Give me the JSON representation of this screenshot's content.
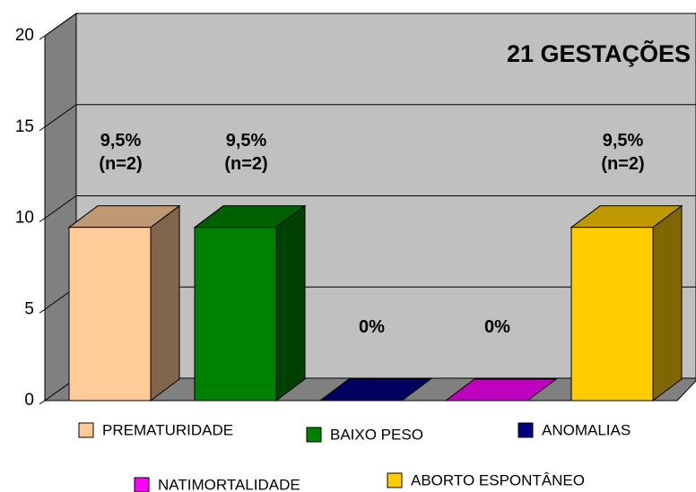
{
  "chart_data": {
    "type": "bar3d",
    "title": "21 GESTAÇÕES",
    "ylim": [
      0,
      20
    ],
    "yticks": [
      0,
      5,
      10,
      15,
      20
    ],
    "grid": true,
    "series": [
      {
        "name": "PREMATURIDADE",
        "color": "#FFCC99",
        "values": [
          9.5
        ],
        "value_labels": [
          "9,5% (n=2)"
        ]
      },
      {
        "name": "BAIXO PESO",
        "color": "#008000",
        "values": [
          9.5
        ],
        "value_labels": [
          "9,5% (n=2)"
        ]
      },
      {
        "name": "ANOMALIAS",
        "color": "#000080",
        "values": [
          0
        ],
        "value_labels": [
          "0%"
        ]
      },
      {
        "name": "NATIMORTALIDADE",
        "color": "#FF00FF",
        "values": [
          0
        ],
        "value_labels": [
          "0%"
        ]
      },
      {
        "name": "ABORTO ESPONTÂNEO",
        "color": "#FFCC00",
        "values": [
          9.5
        ],
        "value_labels": [
          "9,5% (n=2)"
        ]
      }
    ]
  }
}
